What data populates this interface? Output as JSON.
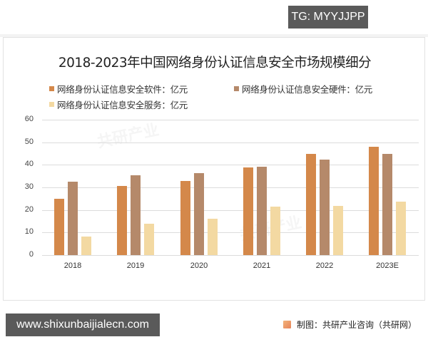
{
  "watermark_top": "TG: MYYJJPP",
  "watermark_bottom": "www.shixunbaijialecn.com",
  "source": "制图：共研产业咨询（共研网）",
  "chart_data": {
    "type": "bar",
    "title": "2018-2023年中国网络身份认证信息安全市场规模细分",
    "xlabel": "",
    "ylabel": "",
    "ylim": [
      0,
      60
    ],
    "yticks": [
      0,
      10,
      20,
      30,
      40,
      50,
      60
    ],
    "grid": true,
    "legend_position": "top",
    "categories": [
      "2018",
      "2019",
      "2020",
      "2021",
      "2022",
      "2023E"
    ],
    "series": [
      {
        "name": "网络身份认证信息安全软件：亿元",
        "color": "#d4884a",
        "values": [
          25.0,
          30.5,
          33.0,
          38.8,
          44.7,
          48.1
        ]
      },
      {
        "name": "网络身份认证信息安全硬件：亿元",
        "color": "#b5896a",
        "values": [
          32.6,
          35.5,
          36.3,
          39.2,
          42.3,
          45.0
        ]
      },
      {
        "name": "网络身份认证信息安全服务：亿元",
        "color": "#f3d9a2",
        "values": [
          8.1,
          13.9,
          16.0,
          21.6,
          21.9,
          23.7
        ]
      }
    ]
  }
}
